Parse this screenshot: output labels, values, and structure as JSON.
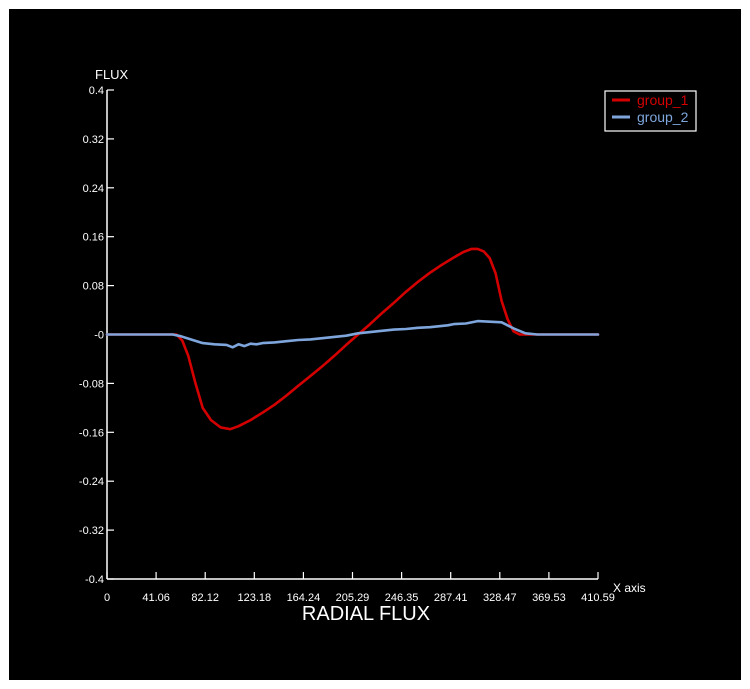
{
  "chart_data": {
    "type": "line",
    "title": "RADIAL FLUX",
    "xlabel": "X axis",
    "ylabel": "FLUX",
    "xlim": [
      0,
      410.59
    ],
    "ylim": [
      -0.4,
      0.4
    ],
    "x_ticks": [
      0,
      41.06,
      82.12,
      123.18,
      164.24,
      205.29,
      246.35,
      287.41,
      328.47,
      369.53,
      410.59
    ],
    "x_tick_labels": [
      "0",
      "41.06",
      "82.12",
      "123.18",
      "164.24",
      "205.29",
      "246.35",
      "287.41",
      "328.47",
      "369.53",
      "410.59"
    ],
    "y_ticks": [
      0.4,
      0.32,
      0.24,
      0.16,
      0.08,
      0,
      -0.08,
      -0.16,
      -0.24,
      -0.32,
      -0.4
    ],
    "y_tick_labels": [
      "0.4",
      "0.32",
      "0.24",
      "0.16",
      "0.08",
      "-0",
      "-0.08",
      "-0.16",
      "-0.24",
      "-0.32",
      "-0.4"
    ],
    "grid": false,
    "legend_position": "top-right",
    "series": [
      {
        "name": "group_1",
        "color": "#d40000",
        "x": [
          0,
          58,
          63,
          68,
          74,
          80,
          87,
          95,
          103,
          110,
          120,
          130,
          140,
          150,
          160,
          170,
          180,
          190,
          200,
          210,
          220,
          230,
          240,
          250,
          260,
          270,
          280,
          290,
          298,
          305,
          310,
          315,
          320,
          325,
          330,
          335,
          340,
          345,
          350,
          360,
          370,
          380,
          395,
          410.59
        ],
        "y": [
          0,
          0,
          -0.01,
          -0.035,
          -0.08,
          -0.12,
          -0.14,
          -0.152,
          -0.155,
          -0.15,
          -0.14,
          -0.128,
          -0.115,
          -0.1,
          -0.084,
          -0.068,
          -0.052,
          -0.035,
          -0.017,
          0,
          0.017,
          0.035,
          0.052,
          0.07,
          0.086,
          0.101,
          0.114,
          0.126,
          0.135,
          0.14,
          0.14,
          0.136,
          0.125,
          0.1,
          0.055,
          0.025,
          0.005,
          0,
          0,
          0,
          0,
          0,
          0,
          0
        ]
      },
      {
        "name": "group_2",
        "color": "#7ea6dc",
        "x": [
          0,
          55,
          62,
          70,
          80,
          90,
          100,
          105,
          110,
          115,
          120,
          125,
          130,
          140,
          150,
          160,
          170,
          180,
          190,
          200,
          210,
          220,
          230,
          240,
          250,
          260,
          270,
          280,
          285,
          290,
          300,
          310,
          320,
          330,
          340,
          350,
          360,
          370,
          380,
          395,
          410.59
        ],
        "y": [
          0,
          0,
          -0.003,
          -0.008,
          -0.014,
          -0.016,
          -0.017,
          -0.021,
          -0.016,
          -0.019,
          -0.015,
          -0.016,
          -0.014,
          -0.013,
          -0.011,
          -0.009,
          -0.008,
          -0.006,
          -0.004,
          -0.002,
          0.002,
          0.004,
          0.006,
          0.008,
          0.009,
          0.011,
          0.012,
          0.014,
          0.015,
          0.017,
          0.018,
          0.022,
          0.021,
          0.02,
          0.01,
          0.002,
          0,
          0,
          0,
          0,
          0
        ]
      }
    ]
  }
}
